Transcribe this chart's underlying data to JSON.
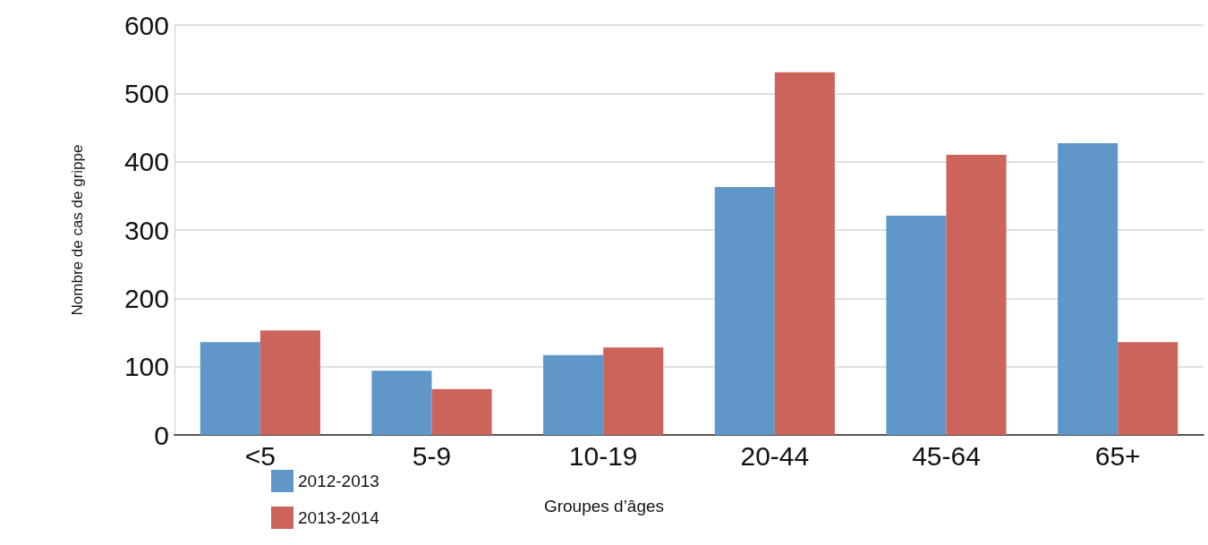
{
  "chart_data": {
    "type": "bar",
    "xlabel": "Groupes d’âges",
    "ylabel": "Nombre de cas de grippe",
    "categories": [
      "<5",
      "5-9",
      "10-19",
      "20-44",
      "45-64",
      "65+"
    ],
    "series": [
      {
        "name": "2012-2013",
        "color": "#6097c9",
        "values": [
          136,
          94,
          117,
          363,
          321,
          427
        ]
      },
      {
        "name": "2013-2014",
        "color": "#cc645c",
        "values": [
          153,
          67,
          128,
          531,
          410,
          136
        ]
      }
    ],
    "ylim": [
      0,
      600
    ],
    "yticks": [
      0,
      100,
      200,
      300,
      400,
      500,
      600
    ],
    "grid": "y",
    "legend": "bottom left"
  }
}
